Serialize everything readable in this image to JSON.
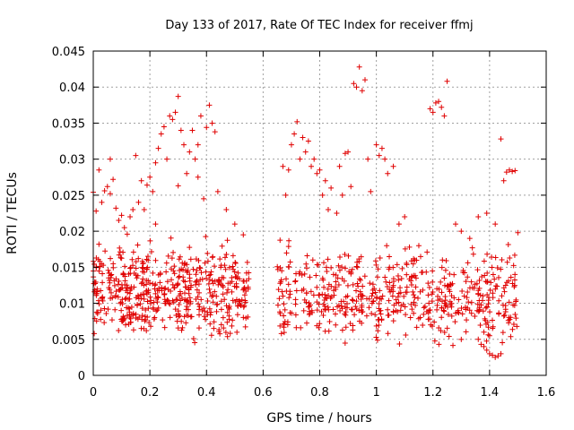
{
  "chart_data": {
    "type": "scatter",
    "title": "Day 133 of 2017, Rate Of TEC Index for receiver ffmj",
    "xlabel": "GPS time / hours",
    "ylabel": "ROTI / TECUs",
    "xlim": [
      0,
      1.6
    ],
    "ylim": [
      0,
      0.045
    ],
    "xticks": [
      "0",
      "0.2",
      "0.4",
      "0.6",
      "0.8",
      "1",
      "1.2",
      "1.4",
      "1.6"
    ],
    "yticks": [
      "0",
      "0.005",
      "0.01",
      "0.015",
      "0.02",
      "0.025",
      "0.03",
      "0.035",
      "0.04",
      "0.045"
    ],
    "grid": true,
    "marker": "+",
    "color": "#e00000",
    "series": [
      {
        "name": "ROTI",
        "points": [
          [
            0.0,
            0.0254
          ],
          [
            0.01,
            0.0228
          ],
          [
            0.01,
            0.015
          ],
          [
            0.02,
            0.0285
          ],
          [
            0.02,
            0.0182
          ],
          [
            0.03,
            0.024
          ],
          [
            0.04,
            0.0256
          ],
          [
            0.05,
            0.0262
          ],
          [
            0.06,
            0.0252
          ],
          [
            0.06,
            0.03
          ],
          [
            0.07,
            0.0272
          ],
          [
            0.08,
            0.0232
          ],
          [
            0.09,
            0.0215
          ],
          [
            0.1,
            0.0222
          ],
          [
            0.11,
            0.0205
          ],
          [
            0.12,
            0.0196
          ],
          [
            0.13,
            0.022
          ],
          [
            0.14,
            0.023
          ],
          [
            0.15,
            0.0305
          ],
          [
            0.16,
            0.024
          ],
          [
            0.17,
            0.027
          ],
          [
            0.18,
            0.023
          ],
          [
            0.19,
            0.0264
          ],
          [
            0.2,
            0.0275
          ],
          [
            0.21,
            0.0255
          ],
          [
            0.22,
            0.021
          ],
          [
            0.22,
            0.0295
          ],
          [
            0.23,
            0.0315
          ],
          [
            0.24,
            0.0335
          ],
          [
            0.25,
            0.0345
          ],
          [
            0.26,
            0.03
          ],
          [
            0.27,
            0.036
          ],
          [
            0.28,
            0.0355
          ],
          [
            0.29,
            0.0365
          ],
          [
            0.3,
            0.0387
          ],
          [
            0.3,
            0.0263
          ],
          [
            0.31,
            0.034
          ],
          [
            0.32,
            0.032
          ],
          [
            0.33,
            0.028
          ],
          [
            0.34,
            0.031
          ],
          [
            0.35,
            0.034
          ],
          [
            0.36,
            0.03
          ],
          [
            0.37,
            0.0275
          ],
          [
            0.37,
            0.032
          ],
          [
            0.38,
            0.036
          ],
          [
            0.39,
            0.0245
          ],
          [
            0.4,
            0.0344
          ],
          [
            0.41,
            0.0375
          ],
          [
            0.42,
            0.035
          ],
          [
            0.43,
            0.0338
          ],
          [
            0.44,
            0.0255
          ],
          [
            0.47,
            0.023
          ],
          [
            0.5,
            0.021
          ],
          [
            0.53,
            0.0195
          ],
          [
            0.67,
            0.029
          ],
          [
            0.68,
            0.025
          ],
          [
            0.69,
            0.0285
          ],
          [
            0.7,
            0.032
          ],
          [
            0.71,
            0.0335
          ],
          [
            0.72,
            0.0352
          ],
          [
            0.73,
            0.03
          ],
          [
            0.74,
            0.033
          ],
          [
            0.75,
            0.031
          ],
          [
            0.76,
            0.0325
          ],
          [
            0.77,
            0.029
          ],
          [
            0.78,
            0.03
          ],
          [
            0.79,
            0.028
          ],
          [
            0.8,
            0.0285
          ],
          [
            0.81,
            0.025
          ],
          [
            0.82,
            0.027
          ],
          [
            0.83,
            0.023
          ],
          [
            0.84,
            0.026
          ],
          [
            0.86,
            0.0225
          ],
          [
            0.87,
            0.029
          ],
          [
            0.88,
            0.025
          ],
          [
            0.89,
            0.0308
          ],
          [
            0.9,
            0.031
          ],
          [
            0.91,
            0.0262
          ],
          [
            0.92,
            0.0405
          ],
          [
            0.93,
            0.04
          ],
          [
            0.94,
            0.0428
          ],
          [
            0.95,
            0.0395
          ],
          [
            0.96,
            0.041
          ],
          [
            0.97,
            0.03
          ],
          [
            0.98,
            0.0255
          ],
          [
            1.0,
            0.032
          ],
          [
            1.01,
            0.0305
          ],
          [
            1.02,
            0.0315
          ],
          [
            1.03,
            0.03
          ],
          [
            1.04,
            0.028
          ],
          [
            1.06,
            0.029
          ],
          [
            1.08,
            0.021
          ],
          [
            1.1,
            0.022
          ],
          [
            1.15,
            0.018
          ],
          [
            1.19,
            0.037
          ],
          [
            1.2,
            0.0365
          ],
          [
            1.21,
            0.0378
          ],
          [
            1.22,
            0.038
          ],
          [
            1.23,
            0.0372
          ],
          [
            1.24,
            0.036
          ],
          [
            1.25,
            0.0408
          ],
          [
            1.28,
            0.021
          ],
          [
            1.3,
            0.02
          ],
          [
            1.33,
            0.019
          ],
          [
            1.36,
            0.022
          ],
          [
            1.39,
            0.0225
          ],
          [
            1.42,
            0.021
          ],
          [
            1.44,
            0.0328
          ],
          [
            1.45,
            0.027
          ],
          [
            1.46,
            0.0282
          ],
          [
            1.47,
            0.0285
          ],
          [
            1.48,
            0.0283
          ],
          [
            1.49,
            0.0284
          ],
          [
            1.5,
            0.0198
          ],
          [
            1.36,
            0.005
          ],
          [
            1.37,
            0.0043
          ],
          [
            1.38,
            0.004
          ],
          [
            1.39,
            0.0035
          ],
          [
            1.4,
            0.003
          ],
          [
            1.41,
            0.0028
          ],
          [
            1.42,
            0.0025
          ],
          [
            1.43,
            0.0027
          ],
          [
            1.44,
            0.003
          ],
          [
            1.38,
            0.006
          ],
          [
            1.4,
            0.0055
          ]
        ],
        "bands": [
          {
            "x": [
              0.0,
              0.55
            ],
            "y": [
              0.0045,
              0.0215
            ],
            "count": 520
          },
          {
            "x": [
              0.65,
              1.5
            ],
            "y": [
              0.004,
              0.021
            ],
            "count": 560
          }
        ]
      }
    ]
  }
}
